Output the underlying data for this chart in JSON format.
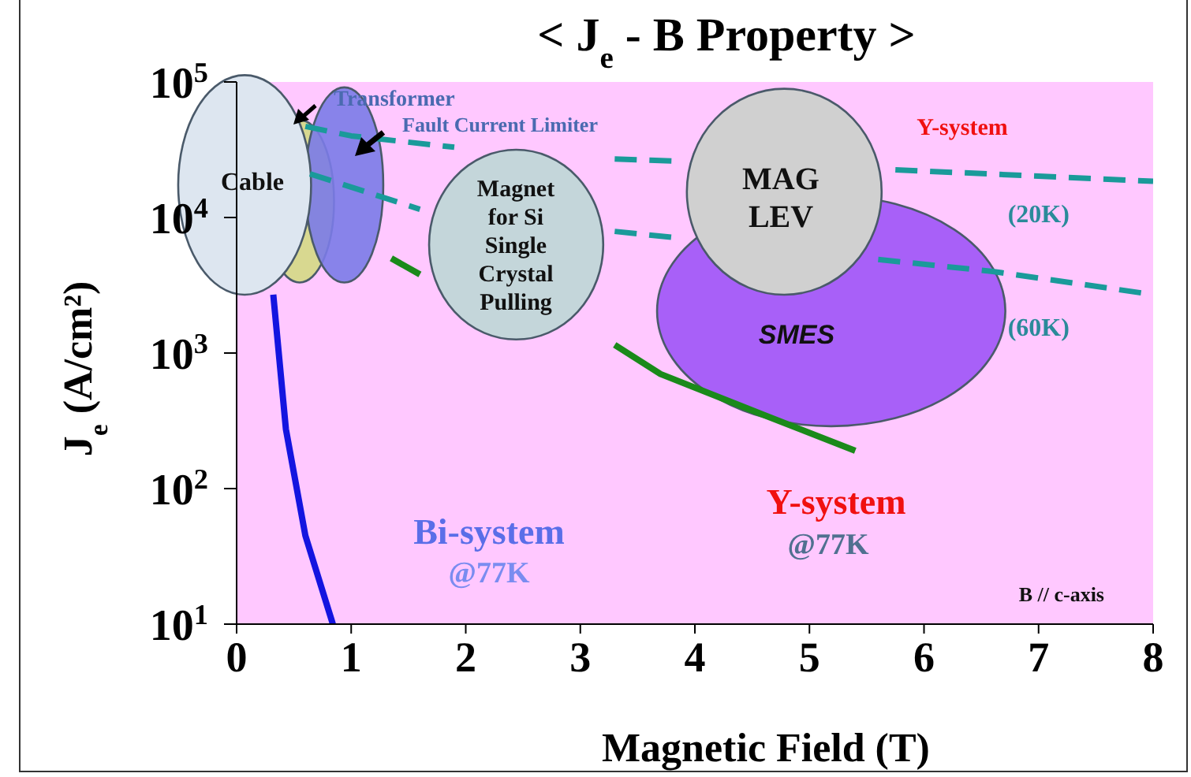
{
  "chart_data": {
    "type": "line",
    "title": "< J$_{e}$ - B Property >",
    "xlabel": "Magnetic Field (T)",
    "ylabel": "J$_{e}$ (A/cm²)",
    "log": "y",
    "xlim": [
      0,
      8
    ],
    "xticks": [
      0,
      1,
      2,
      3,
      4,
      5,
      6,
      7,
      8
    ],
    "ylim": [
      10,
      100000
    ],
    "yticks": [
      {
        "value": 10,
        "label": "10$^{1}$"
      },
      {
        "value": 100,
        "label": "10$^{2}$"
      },
      {
        "value": 1000,
        "label": "10$^{3}$"
      },
      {
        "value": 10000,
        "label": "10$^{4}$"
      },
      {
        "value": 100000,
        "label": "10$^{5}$"
      }
    ],
    "grid": false,
    "legend": false,
    "marker": "none",
    "series": [
      {
        "color": "#1414e0",
        "line_style": "solid",
        "x": [
          0.32,
          0.43,
          0.6,
          0.84
        ],
        "values": [
          2700,
          275,
          45,
          10
        ]
      },
      {
        "color": "#1a8a1a",
        "line_style": "solid",
        "x": [
          1.35,
          1.6,
          2.4,
          3.3,
          3.7,
          4.6,
          5.4
        ],
        "values": [
          5000,
          3800,
          null,
          1150,
          700,
          350,
          190
        ]
      },
      {
        "name": "(20K)",
        "color": "#1a9a9a",
        "line_style": "dashed",
        "x": [
          0.6,
          1.0,
          1.9,
          2.6,
          3.3,
          3.85,
          4.8,
          5.75,
          8.0
        ],
        "values": [
          47000,
          40000,
          33000,
          null,
          27000,
          26000,
          null,
          22500,
          18500
        ]
      },
      {
        "name": "(60K)",
        "color": "#1a9a9a",
        "line_style": "dashed",
        "x": [
          0.64,
          1.6,
          2.5,
          3.3,
          3.9,
          4.8,
          5.6,
          6.6,
          8.0
        ],
        "values": [
          21000,
          11500,
          null,
          7900,
          7000,
          null,
          4900,
          4000,
          2700
        ]
      }
    ],
    "annotations": [
      "Cable",
      "Transformer",
      "Fault Current Limiter",
      "Magnet for Si Single Crystal Pulling",
      "MAG LEV",
      "SMES",
      "Y-system",
      "Bi-system",
      "@77K",
      "Y-system",
      "@77K",
      "B // c-axis"
    ]
  }
}
